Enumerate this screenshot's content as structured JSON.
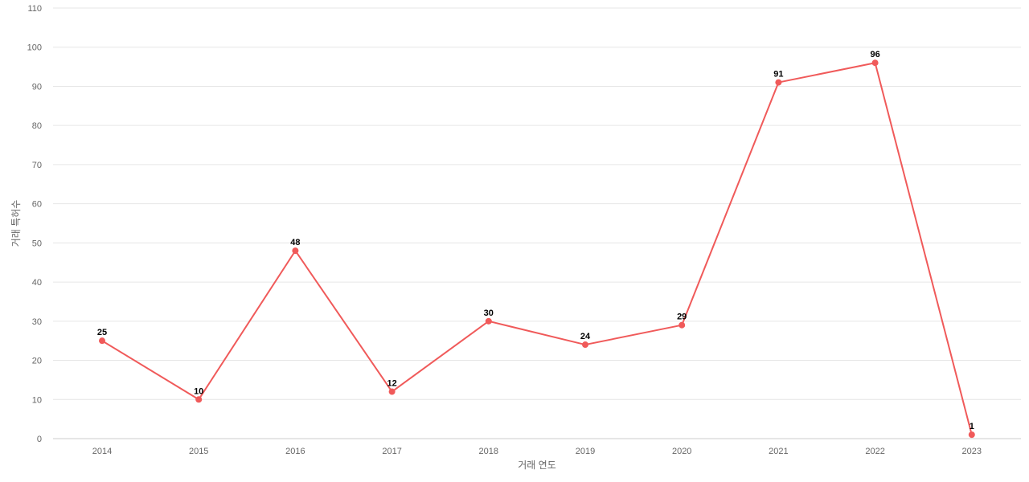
{
  "chart_data": {
    "type": "line",
    "xlabel": "거래 연도",
    "ylabel": "거래 특허수",
    "categories": [
      "2014",
      "2015",
      "2016",
      "2017",
      "2018",
      "2019",
      "2020",
      "2021",
      "2022",
      "2023"
    ],
    "series": [
      {
        "values": [
          25,
          10,
          48,
          12,
          30,
          24,
          29,
          91,
          96,
          1
        ]
      }
    ],
    "yticks": [
      0,
      10,
      20,
      30,
      40,
      50,
      60,
      70,
      80,
      90,
      100,
      110
    ],
    "ylim": [
      0,
      110
    ],
    "grid": true,
    "data_labels": true,
    "colors": {
      "series": "#f05a5a",
      "grid": "#e6e6e6",
      "axis_text": "#666666"
    }
  }
}
